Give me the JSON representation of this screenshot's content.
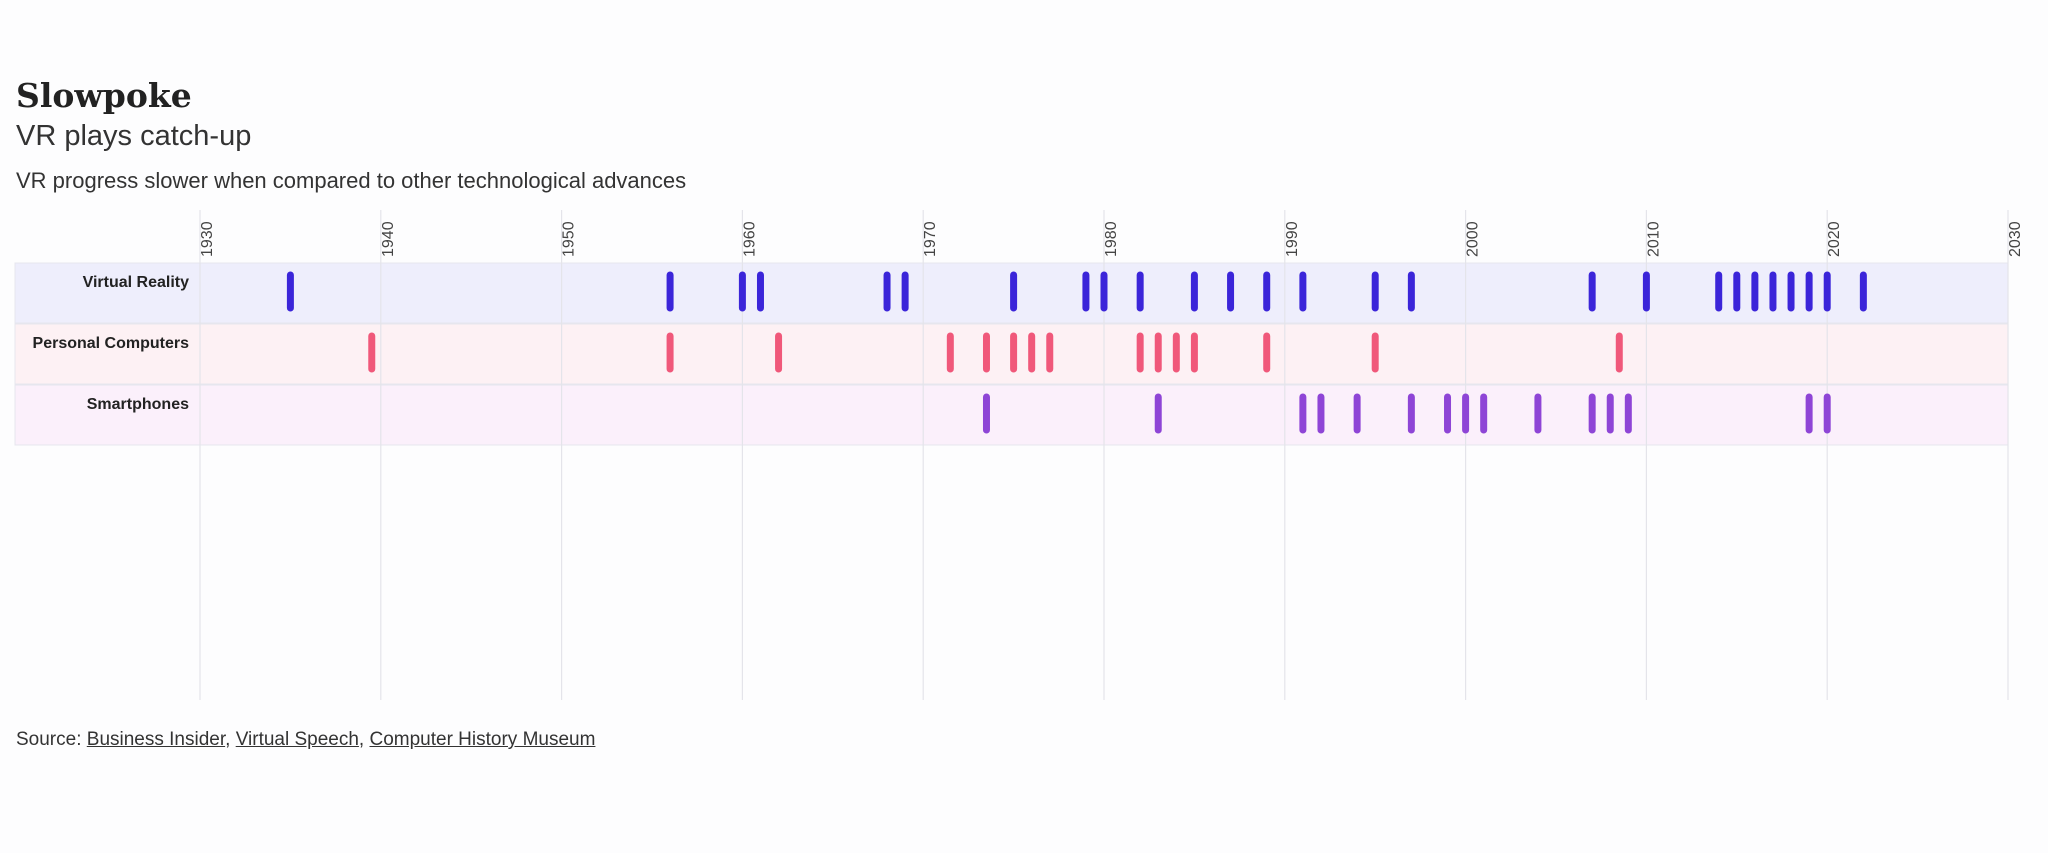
{
  "header": {
    "title": "Slowpoke",
    "subtitle": "VR plays catch-up",
    "description": "VR progress slower when compared to other technological advances"
  },
  "source": {
    "prefix": "Source: ",
    "links": [
      "Business Insider",
      "Virtual Speech",
      "Computer History Museum"
    ]
  },
  "chart_data": {
    "type": "scatter",
    "xlim": [
      1930,
      2030
    ],
    "x_ticks": [
      1930,
      1940,
      1950,
      1960,
      1970,
      1980,
      1990,
      2000,
      2010,
      2020,
      2030
    ],
    "x_tick_labels": [
      "1930",
      "1940",
      "1950",
      "1960",
      "1970",
      "1980",
      "1990",
      "2000",
      "2010",
      "2020",
      "2030"
    ],
    "grid": true,
    "series": [
      {
        "name": "Virtual Reality",
        "color": "#3b25d9",
        "band_color": "#eeeefc",
        "x": [
          1935,
          1956,
          1960,
          1961,
          1968,
          1969,
          1975,
          1979,
          1980,
          1982,
          1985,
          1987,
          1989,
          1991,
          1995,
          1997,
          2007,
          2010,
          2014,
          2015,
          2016,
          2017,
          2018,
          2019,
          2020,
          2022
        ]
      },
      {
        "name": "Personal Computers",
        "color": "#f0587a",
        "band_color": "#fdf1f4",
        "x": [
          1939.5,
          1956,
          1962,
          1971.5,
          1973.5,
          1975,
          1976,
          1977,
          1982,
          1983,
          1984,
          1985,
          1989,
          1995,
          2008.5
        ]
      },
      {
        "name": "Smartphones",
        "color": "#8e45d6",
        "band_color": "#fbf0fb",
        "x": [
          1973.5,
          1983,
          1991,
          1992,
          1994,
          1997,
          1999,
          2000,
          2001,
          2004,
          2007,
          2008,
          2009,
          2019,
          2020
        ]
      }
    ]
  }
}
